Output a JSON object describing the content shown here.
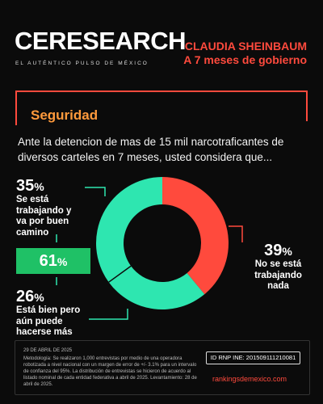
{
  "brand": {
    "logo_text": "CERESEARCH",
    "tagline": "EL AUTÉNTICO PULSO DE MÉXICO"
  },
  "headline": {
    "line1": "CLAUDIA SHEINBAUM",
    "line2": "A 7 meses de gobierno"
  },
  "section": {
    "title": "Seguridad",
    "question": "Ante la detencion de mas de 15 mil narcotraficantes de diversos carteles en 7 meses, usted considera que..."
  },
  "labels": {
    "a_pct": "35",
    "a_text": "Se está trabajando y va por buen camino",
    "b_pct": "39",
    "b_text": "No se está trabajando nada",
    "c_pct": "26",
    "c_text": "Está bien pero aún puede hacerse más",
    "pct_sign": "%",
    "badge_value": "61",
    "badge_sign": "%"
  },
  "footer": {
    "date": "29 DE ABRIL DE 2025",
    "methodology": "Metodología: Se realizaron 1,000 entrevistas por medio de una operadora robotizada a nivel nacional con un margen de error de +/- 3.1% para un intervalo de confianza del 95%. La distribución de entrevistas se hicieron de acuerdo al listado nominal de cada entidad federativa a abril de 2025. Levantamiento: 28 de abril de 2025.",
    "ine": "ID RNP INE: 201509111210081",
    "site": "rankingsdemexico.com"
  },
  "colors": {
    "accent_red": "#ff4a3d",
    "accent_orange": "#ff9a3c",
    "teal": "#2ee6b0",
    "green_badge": "#1fc166",
    "background": "#0b0b0b"
  },
  "chart_data": {
    "type": "pie",
    "donut": true,
    "slices": [
      {
        "label": "No se está trabajando nada",
        "value": 39,
        "color": "#ff4a3d"
      },
      {
        "label": "Está bien pero aún puede hacerse más",
        "value": 26,
        "color": "#2ee6b0"
      },
      {
        "label": "Se está trabajando y va por buen camino",
        "value": 35,
        "color": "#2ee6b0"
      }
    ]
  }
}
